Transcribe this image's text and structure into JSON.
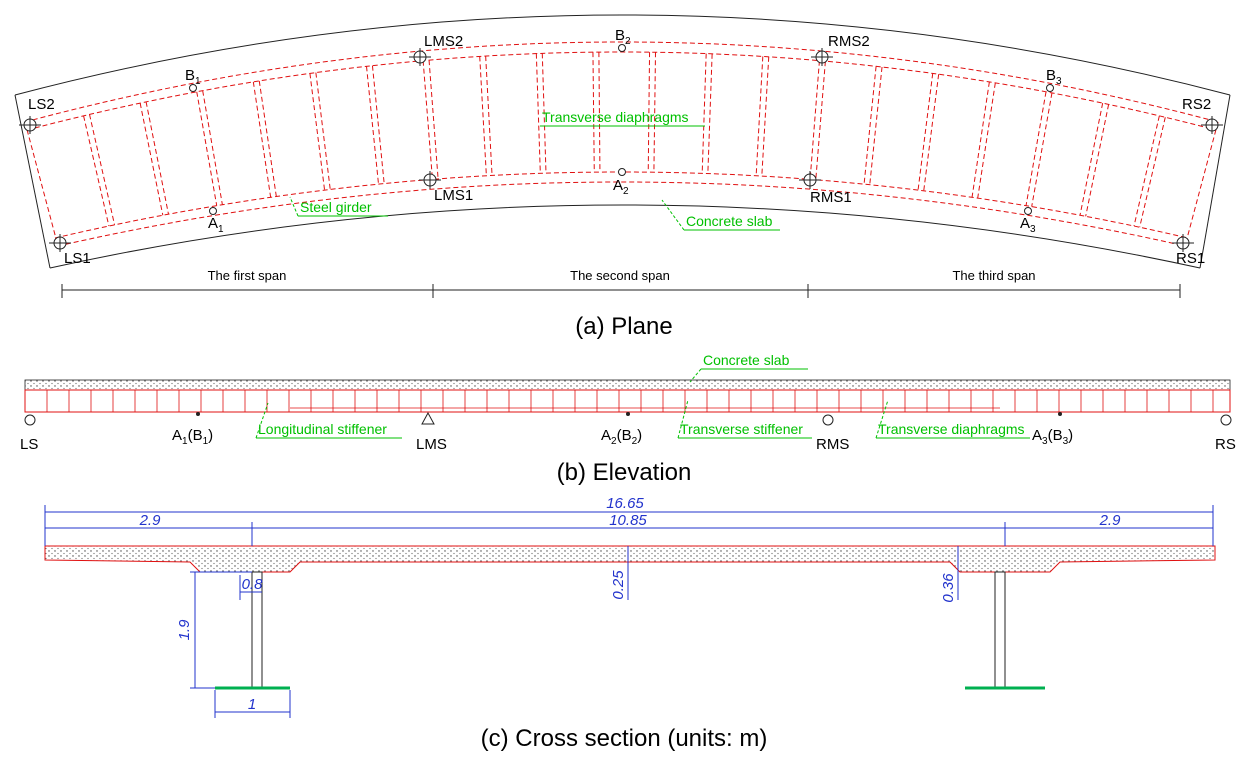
{
  "plane": {
    "caption": "(a) Plane",
    "points": {
      "ls2": "LS2",
      "ls1": "LS1",
      "lms2": "LMS2",
      "lms1": "LMS1",
      "rms2": "RMS2",
      "rms1": "RMS1",
      "rs2": "RS2",
      "rs1": "RS1",
      "b1": {
        "base": "B",
        "sub": "1"
      },
      "a1": {
        "base": "A",
        "sub": "1"
      },
      "b2": {
        "base": "B",
        "sub": "2"
      },
      "a2": {
        "base": "A",
        "sub": "2"
      },
      "b3": {
        "base": "B",
        "sub": "3"
      },
      "a3": {
        "base": "A",
        "sub": "3"
      }
    },
    "annotations": [
      "Transverse diaphragms",
      "Steel girder",
      "Concrete slab"
    ],
    "spans": [
      "The first span",
      "The second span",
      "The third span"
    ]
  },
  "elevation": {
    "caption": "(b) Elevation",
    "supports": [
      "LS",
      "LMS",
      "RMS",
      "RS"
    ],
    "points": [
      {
        "a": "A",
        "sub1": "1",
        "b": "(B",
        "sub2": "1",
        "end": ")"
      },
      {
        "a": "A",
        "sub1": "2",
        "b": "(B",
        "sub2": "2",
        "end": ")"
      },
      {
        "a": "A",
        "sub1": "3",
        "b": "(B",
        "sub2": "3",
        "end": ")"
      }
    ],
    "annotations": [
      "Concrete slab",
      "Longitudinal stiffener",
      "Transverse stiffener",
      "Transverse diaphragms"
    ]
  },
  "cross_section": {
    "caption": "(c) Cross section (units: m)",
    "dimensions": {
      "total_width": "16.65",
      "left_overhang": "2.9",
      "girder_spacing": "10.85",
      "right_overhang": "2.9",
      "flange_top": "0.8",
      "slab_thickness": "0.25",
      "haunch_depth": "0.36",
      "girder_height": "1.9",
      "flange_bottom": "1"
    }
  }
}
